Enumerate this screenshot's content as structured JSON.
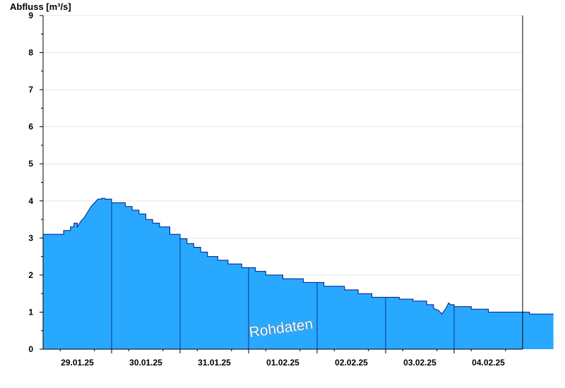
{
  "chart_data": {
    "type": "area",
    "ylabel": "Abfluss [m³/s]",
    "ylim": [
      0,
      9
    ],
    "yticks": [
      "0",
      "1",
      "2",
      "3",
      "4",
      "5",
      "6",
      "7",
      "8",
      "9"
    ],
    "grid": true,
    "x_dates": [
      "29.01.25",
      "30.01.25",
      "31.01.25",
      "01.02.25",
      "02.02.25",
      "03.02.25",
      "04.02.25"
    ],
    "xlim_days": [
      -0.5,
      6.5
    ],
    "watermark": "Rohdaten",
    "colors": {
      "fill": "#29a8ff",
      "line": "#00188a",
      "grid": "#e6e6e6"
    },
    "series": [
      {
        "x": [
          -0.5,
          -0.2,
          -0.2,
          -0.1,
          -0.1,
          -0.05,
          -0.05,
          0.0,
          0.0,
          0.05,
          0.1,
          0.15,
          0.2,
          0.25,
          0.3,
          0.35,
          0.35,
          0.4,
          0.4,
          0.5,
          0.5,
          0.7,
          0.7,
          0.8,
          0.8,
          0.9,
          0.9,
          1.0,
          1.0,
          1.1,
          1.1,
          1.2,
          1.2,
          1.35,
          1.35,
          1.5,
          1.5,
          1.6,
          1.6,
          1.7,
          1.7,
          1.8,
          1.8,
          1.9,
          1.9,
          2.05,
          2.05,
          2.2,
          2.2,
          2.4,
          2.4,
          2.6,
          2.6,
          2.75,
          2.75,
          3.0,
          3.0,
          3.3,
          3.3,
          3.6,
          3.6,
          3.9,
          3.9,
          4.1,
          4.1,
          4.3,
          4.3,
          4.7,
          4.7,
          4.9,
          4.9,
          5.1,
          5.1,
          5.2,
          5.2,
          5.27,
          5.32,
          5.38,
          5.42,
          5.45,
          5.5,
          5.5,
          5.75,
          5.75,
          6.0,
          6.0,
          6.6,
          6.6,
          6.95
        ],
        "y": [
          3.1,
          3.1,
          3.2,
          3.2,
          3.3,
          3.3,
          3.4,
          3.4,
          3.3,
          3.45,
          3.55,
          3.7,
          3.85,
          3.95,
          4.05,
          4.05,
          4.07,
          4.07,
          4.05,
          4.05,
          3.95,
          3.95,
          3.85,
          3.85,
          3.75,
          3.75,
          3.65,
          3.65,
          3.5,
          3.5,
          3.4,
          3.4,
          3.3,
          3.3,
          3.1,
          3.1,
          2.98,
          2.98,
          2.85,
          2.85,
          2.75,
          2.75,
          2.62,
          2.62,
          2.5,
          2.5,
          2.4,
          2.4,
          2.3,
          2.3,
          2.2,
          2.2,
          2.1,
          2.1,
          2.0,
          2.0,
          1.9,
          1.9,
          1.8,
          1.8,
          1.7,
          1.7,
          1.6,
          1.6,
          1.5,
          1.5,
          1.4,
          1.4,
          1.35,
          1.35,
          1.3,
          1.3,
          1.2,
          1.2,
          1.1,
          1.05,
          0.95,
          1.1,
          1.25,
          1.2,
          1.2,
          1.15,
          1.15,
          1.08,
          1.08,
          1.0,
          1.0,
          0.95,
          0.95
        ]
      }
    ]
  }
}
